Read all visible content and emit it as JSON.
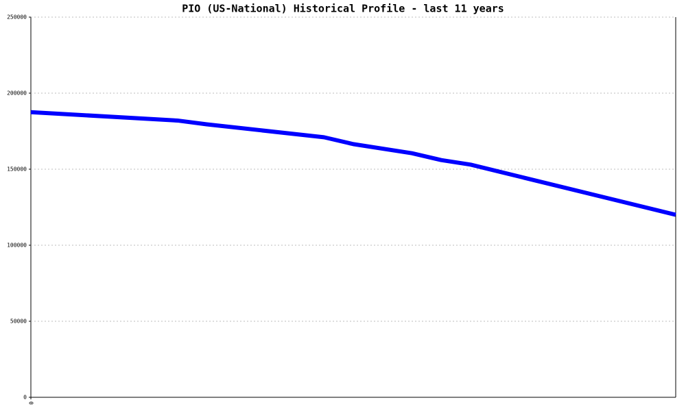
{
  "chart_data": {
    "type": "line",
    "title": "PIO (US-National) Historical Profile - last 11 years",
    "x": [
      0,
      5,
      6,
      10,
      11,
      13,
      14,
      15,
      22
    ],
    "series": [
      {
        "color": "#0000ff",
        "values": [
          187500,
          182000,
          179500,
          171000,
          166500,
          160500,
          156000,
          153000,
          120000
        ]
      }
    ],
    "xlim": [
      0,
      22
    ],
    "xticks": [
      0
    ],
    "ylim": [
      0,
      250000
    ],
    "yticks": [
      0,
      50000,
      100000,
      150000,
      200000,
      250000
    ],
    "grid": true
  }
}
